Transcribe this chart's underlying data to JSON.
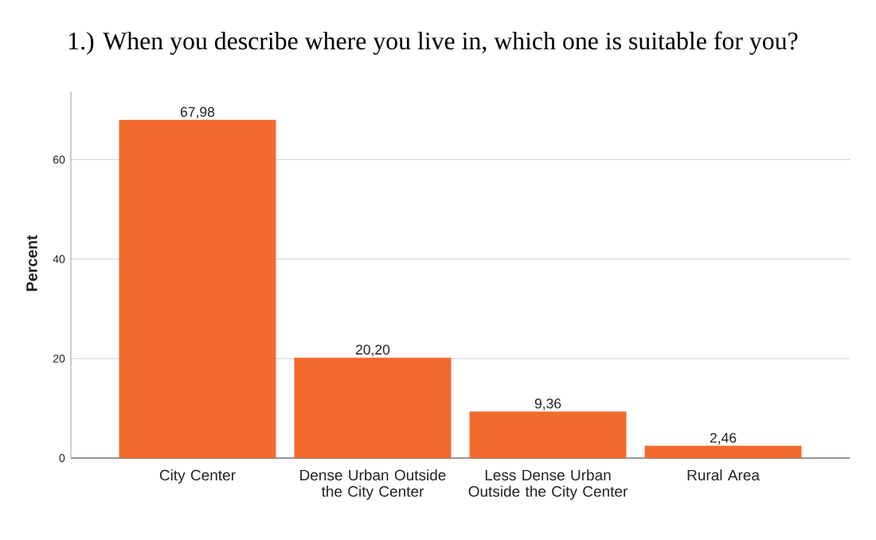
{
  "chart_data": {
    "type": "bar",
    "title": "1.) When you describe where you live in, which one is suitable for you?",
    "ylabel": "Percent",
    "categories": [
      "City Center",
      "Dense Urban Outside the City Center",
      "Less Dense Urban Outside the City Center",
      "Rural Area"
    ],
    "values": [
      67.98,
      20.2,
      9.36,
      2.46
    ],
    "value_labels": [
      "67,98",
      "20,20",
      "9,36",
      "2,46"
    ],
    "color": "#f26a2d",
    "ylim": [
      0,
      73.7
    ],
    "yticks": [
      0,
      20,
      40,
      60
    ],
    "grid": "y"
  }
}
